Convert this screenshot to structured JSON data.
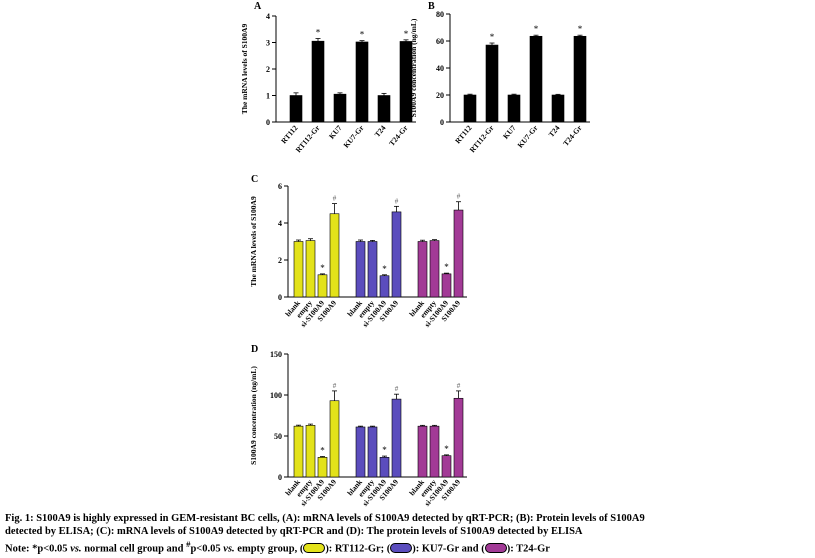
{
  "colors": {
    "yellow": "#e3e21a",
    "blue": "#5b4dbd",
    "purple": "#a23a96",
    "black": "#000000"
  },
  "chart_data": [
    {
      "panel": "A",
      "type": "bar",
      "ylabel": "The mRNA levels of S100A9",
      "categories": [
        "RT112",
        "RT112-Gr",
        "KU7",
        "KU7-Gr",
        "T24",
        "T24-Gr"
      ],
      "values": [
        1.0,
        3.05,
        1.05,
        3.02,
        1.0,
        3.04
      ],
      "errors": [
        0.1,
        0.1,
        0.05,
        0.05,
        0.08,
        0.06
      ],
      "marks": [
        "",
        "*",
        "",
        "*",
        "",
        "*"
      ],
      "colors": [
        "black",
        "black",
        "black",
        "black",
        "black",
        "black"
      ],
      "ylim": [
        0,
        4
      ],
      "yticks": [
        0,
        1,
        2,
        3,
        4
      ]
    },
    {
      "panel": "B",
      "type": "bar",
      "ylabel": "S100A9 concentration (ng/mL)",
      "categories": [
        "RT112",
        "RT112-Gr",
        "KU7",
        "KU7-Gr",
        "T24",
        "T24-Gr"
      ],
      "values": [
        20,
        57,
        20,
        63.5,
        20,
        63.5
      ],
      "errors": [
        0.6,
        1.5,
        0.6,
        0.8,
        0.5,
        0.8
      ],
      "marks": [
        "",
        "*",
        "",
        "*",
        "",
        "*"
      ],
      "colors": [
        "black",
        "black",
        "black",
        "black",
        "black",
        "black"
      ],
      "ylim": [
        0,
        80
      ],
      "yticks": [
        0,
        20,
        40,
        60,
        80
      ]
    },
    {
      "panel": "C",
      "type": "bar",
      "ylabel": "The mRNA levels of S100A9",
      "groups": [
        {
          "color": "yellow",
          "categories": [
            "blank",
            "empty",
            "si-S100A9",
            "S100A9"
          ],
          "values": [
            3.0,
            3.05,
            1.2,
            4.5
          ],
          "errors": [
            0.08,
            0.1,
            0.05,
            0.55
          ],
          "marks": [
            "",
            "",
            "*",
            "#"
          ]
        },
        {
          "color": "blue",
          "categories": [
            "blank",
            "empty",
            "si-S100A9",
            "S100A9"
          ],
          "values": [
            3.0,
            3.0,
            1.15,
            4.6
          ],
          "errors": [
            0.08,
            0.06,
            0.05,
            0.3
          ],
          "marks": [
            "",
            "",
            "*",
            "#"
          ]
        },
        {
          "color": "purple",
          "categories": [
            "blank",
            "empty",
            "si-S100A9",
            "S100A9"
          ],
          "values": [
            3.0,
            3.05,
            1.25,
            4.7
          ],
          "errors": [
            0.07,
            0.05,
            0.04,
            0.45
          ],
          "marks": [
            "",
            "",
            "*",
            "#"
          ]
        }
      ],
      "ylim": [
        0,
        6
      ],
      "yticks": [
        0,
        2,
        4,
        6
      ]
    },
    {
      "panel": "D",
      "type": "bar",
      "ylabel": "S100A9 concentration (ng/mL)",
      "groups": [
        {
          "color": "yellow",
          "categories": [
            "blank",
            "empty",
            "si-S100A9",
            "S100A9"
          ],
          "values": [
            62,
            63,
            24,
            93
          ],
          "errors": [
            1.2,
            1.5,
            1.0,
            12
          ],
          "marks": [
            "",
            "",
            "*",
            "#"
          ]
        },
        {
          "color": "blue",
          "categories": [
            "blank",
            "empty",
            "si-S100A9",
            "S100A9"
          ],
          "values": [
            61,
            61,
            24,
            95
          ],
          "errors": [
            1.0,
            1.0,
            1.5,
            6
          ],
          "marks": [
            "",
            "",
            "*",
            "#"
          ]
        },
        {
          "color": "purple",
          "categories": [
            "blank",
            "empty",
            "si-S100A9",
            "S100A9"
          ],
          "values": [
            62,
            62,
            26,
            96
          ],
          "errors": [
            1.0,
            1.0,
            1.0,
            9
          ],
          "marks": [
            "",
            "",
            "*",
            "#"
          ]
        }
      ],
      "ylim": [
        0,
        150
      ],
      "yticks": [
        0,
        50,
        100,
        150
      ]
    }
  ],
  "caption": {
    "line1": "Fig. 1: S100A9 is highly expressed in GEM-resistant BC cells, (A): mRNA levels of S100A9 detected by qRT-PCR; (B): Protein levels of S100A9",
    "line2": "detected by ELISA; (C): mRNA levels of S100A9 detected by qRT-PCR and (D): The protein levels of S100A9 detected by ELISA",
    "note_prefix": "Note: *p<0.05 ",
    "note_vs1": "vs.",
    "note_mid": " normal cell group and ",
    "note_hash": "#",
    "note_p2": "p<0.05 ",
    "note_vs2": "vs.",
    "note_mid2": " empty group, (",
    "legend1": "): RT112-Gr; (",
    "legend2": "): KU7-Gr and (",
    "legend3": "): T24-Gr"
  }
}
